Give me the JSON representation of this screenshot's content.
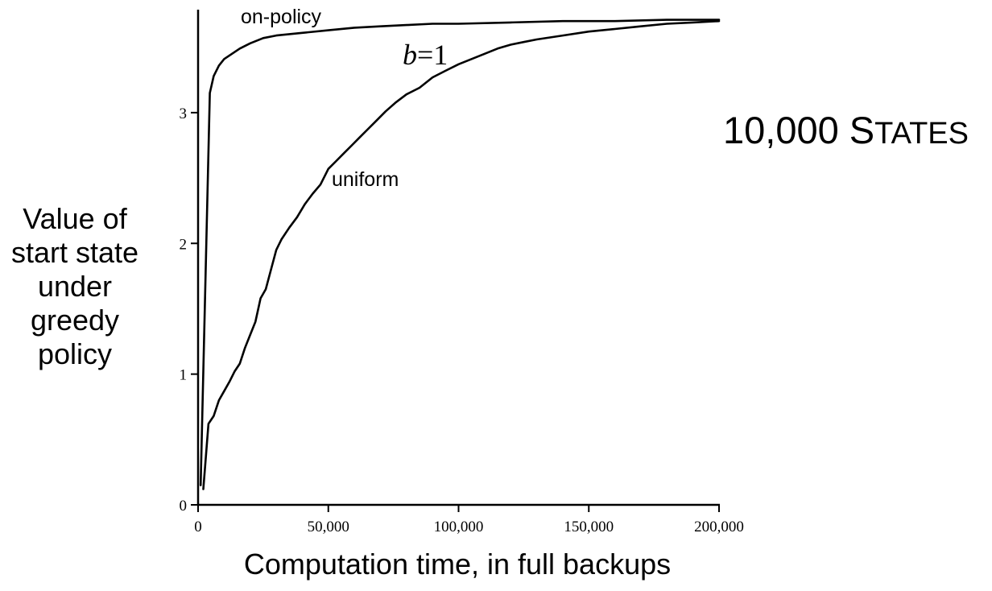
{
  "chart_data": {
    "type": "line",
    "xlabel": "Computation time, in full backups",
    "ylabel": [
      "Value of",
      "start state",
      "under",
      "greedy",
      "policy"
    ],
    "xlim": [
      0,
      200000
    ],
    "ylim": [
      0,
      3.8
    ],
    "xticks": [
      0,
      50000,
      100000,
      150000,
      200000
    ],
    "xtick_labels": [
      "0",
      "50,000",
      "100,000",
      "150,000",
      "200,000"
    ],
    "yticks": [
      0,
      1,
      2,
      3
    ],
    "ytick_labels": [
      "0",
      "1",
      "2",
      "3"
    ],
    "grid": false,
    "annotations": {
      "param_italic": "b",
      "param_rest": "=1",
      "states_big": "10,000 S",
      "states_small": "TATES"
    },
    "series": [
      {
        "name": "on-policy",
        "x": [
          1000,
          4500,
          6000,
          8000,
          10000,
          13000,
          16000,
          20000,
          25000,
          30000,
          40000,
          50000,
          60000,
          70000,
          80000,
          90000,
          100000,
          120000,
          140000,
          160000,
          180000,
          200000
        ],
        "y": [
          0.15,
          3.15,
          3.28,
          3.36,
          3.41,
          3.45,
          3.49,
          3.53,
          3.57,
          3.59,
          3.61,
          3.63,
          3.65,
          3.66,
          3.67,
          3.68,
          3.68,
          3.69,
          3.7,
          3.7,
          3.71,
          3.71
        ]
      },
      {
        "name": "uniform",
        "x": [
          2000,
          4000,
          6000,
          8000,
          10000,
          12000,
          14000,
          16000,
          18000,
          20000,
          22000,
          24000,
          26000,
          28000,
          30000,
          32000,
          35000,
          38000,
          41000,
          44000,
          47000,
          50000,
          53000,
          56000,
          59000,
          62000,
          65000,
          68000,
          72000,
          76000,
          80000,
          85000,
          90000,
          95000,
          100000,
          105000,
          110000,
          115000,
          120000,
          125000,
          130000,
          140000,
          150000,
          160000,
          170000,
          180000,
          190000,
          200000
        ],
        "y": [
          0.12,
          0.62,
          0.68,
          0.8,
          0.87,
          0.94,
          1.02,
          1.08,
          1.2,
          1.3,
          1.4,
          1.58,
          1.65,
          1.8,
          1.95,
          2.03,
          2.12,
          2.2,
          2.3,
          2.38,
          2.45,
          2.57,
          2.63,
          2.69,
          2.75,
          2.81,
          2.87,
          2.93,
          3.01,
          3.08,
          3.14,
          3.19,
          3.27,
          3.32,
          3.37,
          3.41,
          3.45,
          3.49,
          3.52,
          3.54,
          3.56,
          3.59,
          3.62,
          3.64,
          3.66,
          3.68,
          3.69,
          3.7
        ]
      }
    ]
  }
}
